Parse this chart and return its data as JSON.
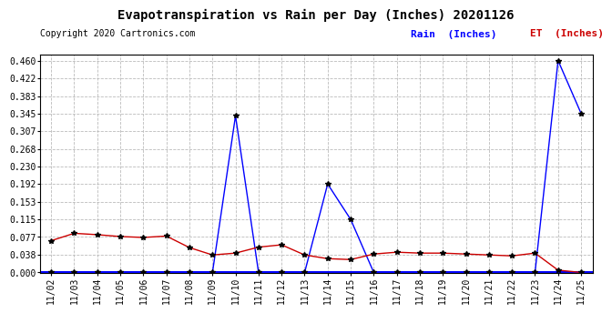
{
  "title": "Evapotranspiration vs Rain per Day (Inches) 20201126",
  "copyright": "Copyright 2020 Cartronics.com",
  "x_labels": [
    "11/02",
    "11/03",
    "11/04",
    "11/05",
    "11/06",
    "11/07",
    "11/08",
    "11/09",
    "11/10",
    "11/11",
    "11/12",
    "11/13",
    "11/14",
    "11/15",
    "11/16",
    "11/17",
    "11/18",
    "11/19",
    "11/20",
    "11/21",
    "11/22",
    "11/23",
    "11/24",
    "11/25"
  ],
  "rain_values": [
    0.0,
    0.0,
    0.0,
    0.0,
    0.0,
    0.0,
    0.0,
    0.0,
    0.34,
    0.0,
    0.0,
    0.0,
    0.192,
    0.115,
    0.0,
    0.0,
    0.0,
    0.0,
    0.0,
    0.0,
    0.0,
    0.0,
    0.46,
    0.345
  ],
  "et_values": [
    0.069,
    0.085,
    0.082,
    0.078,
    0.076,
    0.079,
    0.054,
    0.038,
    0.042,
    0.055,
    0.06,
    0.038,
    0.03,
    0.028,
    0.04,
    0.044,
    0.042,
    0.042,
    0.04,
    0.038,
    0.036,
    0.042,
    0.005,
    0.0
  ],
  "rain_color": "#0000ff",
  "et_color": "#cc0000",
  "zero_color": "#0000ff",
  "ylim_min": -0.002,
  "ylim_max": 0.472,
  "yticks": [
    0.0,
    0.038,
    0.077,
    0.115,
    0.153,
    0.192,
    0.23,
    0.268,
    0.307,
    0.345,
    0.383,
    0.422,
    0.46
  ],
  "legend_rain_label": "Rain  (Inches)",
  "legend_et_label": "ET  (Inches)",
  "background_color": "#ffffff",
  "grid_color": "#bbbbbb",
  "title_fontsize": 10,
  "copyright_fontsize": 7,
  "tick_fontsize": 7,
  "ytick_fontsize": 7
}
